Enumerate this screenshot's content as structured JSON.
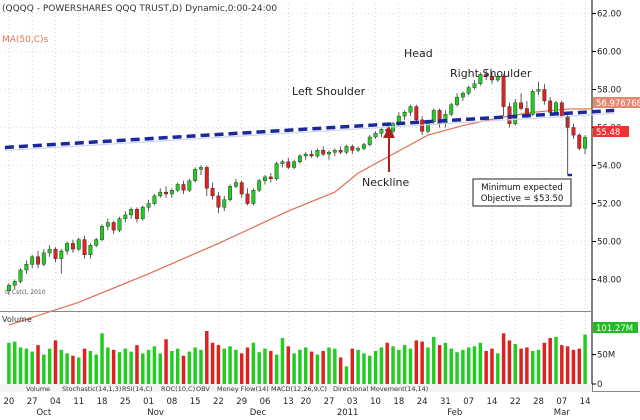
{
  "chart_title": "(QQQQ - POWERSHARES QQQ TRUST,D) Dynamic,0:00-24:00",
  "ma_label": "MA(50,C)s",
  "copyright": "© Cstcl, 2010",
  "annotations": {
    "head": "Head",
    "left_shoulder": "Left Shoulder",
    "right_shoulder": "Right Shoulder",
    "neckline": "Neckline",
    "objective_line1": "Minimum expected",
    "objective_line2": "Objective = $53.50"
  },
  "price_tags": {
    "ma_value": "56.976768",
    "last_price": "55.48"
  },
  "volume_panel": {
    "label": "Volume",
    "last_value_tag": "101.27M",
    "ticks": [
      "50M",
      "0"
    ]
  },
  "indicator_tabs": [
    "Volume",
    "Stochastic(14,1,3)",
    "RSI(14,C)",
    "ROC(10,C)",
    "OBV",
    "Money Flow(14)",
    "MACD(12,26,9,C)",
    "Directional Movement(14,14)"
  ],
  "colors": {
    "up": "#22cc22",
    "down": "#dd2222",
    "ma": "#e07050",
    "neckline": "#1a2a9a",
    "tag_ma": "#e08a70",
    "tag_price": "#ee3333",
    "tag_volume": "#22bb22"
  },
  "chart_data": {
    "type": "candlestick",
    "title": "(QQQQ - POWERSHARES QQQ TRUST,D) Dynamic,0:00-24:00",
    "y_ticks": [
      "62.00",
      "60.00",
      "58.00",
      "56.00",
      "54.00",
      "52.00",
      "50.00",
      "48.00"
    ],
    "ylim": [
      46.5,
      62.5
    ],
    "x_ticks": [
      "20",
      "27",
      "04",
      "11",
      "18",
      "25",
      "01",
      "08",
      "15",
      "22",
      "29",
      "06",
      "13",
      "20",
      "27",
      "03",
      "10",
      "18",
      "24",
      "31",
      "07",
      "14",
      "22",
      "28",
      "07",
      "14"
    ],
    "month_labels": [
      "Oct",
      "Nov",
      "Dec",
      "2011",
      "Feb",
      "Mar"
    ],
    "candles": [
      {
        "o": 47.4,
        "h": 47.8,
        "l": 47.2,
        "c": 47.7
      },
      {
        "o": 47.7,
        "h": 48.0,
        "l": 47.5,
        "c": 47.9
      },
      {
        "o": 47.9,
        "h": 48.6,
        "l": 47.8,
        "c": 48.5
      },
      {
        "o": 48.5,
        "h": 49.0,
        "l": 48.3,
        "c": 48.8
      },
      {
        "o": 48.8,
        "h": 49.3,
        "l": 48.6,
        "c": 49.2
      },
      {
        "o": 49.2,
        "h": 49.5,
        "l": 48.6,
        "c": 48.8
      },
      {
        "o": 48.8,
        "h": 49.6,
        "l": 48.7,
        "c": 49.4
      },
      {
        "o": 49.4,
        "h": 49.8,
        "l": 49.2,
        "c": 49.6
      },
      {
        "o": 49.6,
        "h": 49.7,
        "l": 48.9,
        "c": 49.1
      },
      {
        "o": 49.1,
        "h": 49.6,
        "l": 48.3,
        "c": 49.5
      },
      {
        "o": 49.5,
        "h": 50.0,
        "l": 49.3,
        "c": 49.9
      },
      {
        "o": 49.9,
        "h": 50.1,
        "l": 49.4,
        "c": 49.6
      },
      {
        "o": 49.6,
        "h": 50.2,
        "l": 49.5,
        "c": 50.1
      },
      {
        "o": 50.1,
        "h": 50.3,
        "l": 49.1,
        "c": 49.3
      },
      {
        "o": 49.3,
        "h": 49.9,
        "l": 49.1,
        "c": 49.8
      },
      {
        "o": 49.8,
        "h": 50.2,
        "l": 49.7,
        "c": 50.1
      },
      {
        "o": 50.1,
        "h": 50.9,
        "l": 50.0,
        "c": 50.8
      },
      {
        "o": 50.8,
        "h": 51.2,
        "l": 50.6,
        "c": 51.0
      },
      {
        "o": 51.0,
        "h": 51.1,
        "l": 50.4,
        "c": 50.6
      },
      {
        "o": 50.6,
        "h": 51.3,
        "l": 50.5,
        "c": 51.2
      },
      {
        "o": 51.2,
        "h": 51.6,
        "l": 51.0,
        "c": 51.4
      },
      {
        "o": 51.4,
        "h": 51.8,
        "l": 51.2,
        "c": 51.7
      },
      {
        "o": 51.7,
        "h": 51.8,
        "l": 51.0,
        "c": 51.2
      },
      {
        "o": 51.2,
        "h": 51.9,
        "l": 51.1,
        "c": 51.8
      },
      {
        "o": 51.8,
        "h": 52.2,
        "l": 51.6,
        "c": 52.0
      },
      {
        "o": 52.0,
        "h": 52.5,
        "l": 51.9,
        "c": 52.4
      },
      {
        "o": 52.4,
        "h": 52.8,
        "l": 52.3,
        "c": 52.6
      },
      {
        "o": 52.6,
        "h": 52.9,
        "l": 52.3,
        "c": 52.5
      },
      {
        "o": 52.5,
        "h": 52.8,
        "l": 52.3,
        "c": 52.7
      },
      {
        "o": 52.7,
        "h": 53.1,
        "l": 52.6,
        "c": 53.0
      },
      {
        "o": 53.0,
        "h": 53.2,
        "l": 52.5,
        "c": 52.7
      },
      {
        "o": 52.7,
        "h": 53.3,
        "l": 52.6,
        "c": 53.2
      },
      {
        "o": 53.2,
        "h": 53.9,
        "l": 53.1,
        "c": 53.8
      },
      {
        "o": 53.8,
        "h": 54.0,
        "l": 53.5,
        "c": 53.9
      },
      {
        "o": 53.9,
        "h": 54.0,
        "l": 52.4,
        "c": 52.8
      },
      {
        "o": 52.8,
        "h": 53.1,
        "l": 52.2,
        "c": 52.4
      },
      {
        "o": 52.4,
        "h": 52.6,
        "l": 51.5,
        "c": 51.8
      },
      {
        "o": 51.8,
        "h": 52.4,
        "l": 51.6,
        "c": 52.2
      },
      {
        "o": 52.2,
        "h": 53.0,
        "l": 52.1,
        "c": 52.9
      },
      {
        "o": 52.9,
        "h": 53.3,
        "l": 52.8,
        "c": 53.1
      },
      {
        "o": 53.1,
        "h": 53.2,
        "l": 52.3,
        "c": 52.5
      },
      {
        "o": 52.5,
        "h": 52.8,
        "l": 51.9,
        "c": 52.0
      },
      {
        "o": 52.0,
        "h": 52.8,
        "l": 51.9,
        "c": 52.7
      },
      {
        "o": 52.7,
        "h": 53.3,
        "l": 52.6,
        "c": 53.2
      },
      {
        "o": 53.2,
        "h": 53.5,
        "l": 53.0,
        "c": 53.4
      },
      {
        "o": 53.4,
        "h": 53.6,
        "l": 53.1,
        "c": 53.3
      },
      {
        "o": 53.3,
        "h": 54.2,
        "l": 53.2,
        "c": 54.1
      },
      {
        "o": 54.1,
        "h": 54.3,
        "l": 53.9,
        "c": 54.2
      },
      {
        "o": 54.2,
        "h": 54.4,
        "l": 53.8,
        "c": 53.9
      },
      {
        "o": 53.9,
        "h": 54.3,
        "l": 53.8,
        "c": 54.2
      },
      {
        "o": 54.2,
        "h": 54.6,
        "l": 54.1,
        "c": 54.5
      },
      {
        "o": 54.5,
        "h": 54.7,
        "l": 54.3,
        "c": 54.6
      },
      {
        "o": 54.6,
        "h": 54.8,
        "l": 54.4,
        "c": 54.5
      },
      {
        "o": 54.5,
        "h": 54.9,
        "l": 54.4,
        "c": 54.8
      },
      {
        "o": 54.8,
        "h": 55.0,
        "l": 54.5,
        "c": 54.6
      },
      {
        "o": 54.6,
        "h": 54.8,
        "l": 54.3,
        "c": 54.7
      },
      {
        "o": 54.7,
        "h": 54.9,
        "l": 54.5,
        "c": 54.8
      },
      {
        "o": 54.8,
        "h": 55.0,
        "l": 54.6,
        "c": 54.7
      },
      {
        "o": 54.7,
        "h": 55.1,
        "l": 54.6,
        "c": 55.0
      },
      {
        "o": 55.0,
        "h": 55.1,
        "l": 54.6,
        "c": 54.8
      },
      {
        "o": 54.8,
        "h": 55.0,
        "l": 54.7,
        "c": 54.9
      },
      {
        "o": 54.9,
        "h": 55.2,
        "l": 54.8,
        "c": 55.1
      },
      {
        "o": 55.1,
        "h": 55.6,
        "l": 55.0,
        "c": 55.5
      },
      {
        "o": 55.5,
        "h": 55.8,
        "l": 55.4,
        "c": 55.7
      },
      {
        "o": 55.7,
        "h": 56.0,
        "l": 55.5,
        "c": 55.9
      },
      {
        "o": 55.9,
        "h": 56.1,
        "l": 55.6,
        "c": 55.8
      },
      {
        "o": 55.8,
        "h": 56.3,
        "l": 55.7,
        "c": 56.2
      },
      {
        "o": 56.2,
        "h": 56.8,
        "l": 56.1,
        "c": 56.6
      },
      {
        "o": 56.6,
        "h": 56.9,
        "l": 56.4,
        "c": 56.8
      },
      {
        "o": 56.8,
        "h": 57.2,
        "l": 56.6,
        "c": 57.1
      },
      {
        "o": 57.1,
        "h": 57.2,
        "l": 56.2,
        "c": 56.4
      },
      {
        "o": 56.4,
        "h": 56.6,
        "l": 55.6,
        "c": 55.8
      },
      {
        "o": 55.8,
        "h": 56.4,
        "l": 55.7,
        "c": 56.3
      },
      {
        "o": 56.3,
        "h": 57.0,
        "l": 56.2,
        "c": 56.9
      },
      {
        "o": 56.9,
        "h": 57.0,
        "l": 56.0,
        "c": 56.2
      },
      {
        "o": 56.2,
        "h": 56.9,
        "l": 56.0,
        "c": 56.7
      },
      {
        "o": 56.7,
        "h": 57.3,
        "l": 56.6,
        "c": 57.2
      },
      {
        "o": 57.2,
        "h": 57.8,
        "l": 57.1,
        "c": 57.6
      },
      {
        "o": 57.6,
        "h": 57.9,
        "l": 57.4,
        "c": 57.8
      },
      {
        "o": 57.8,
        "h": 58.2,
        "l": 57.7,
        "c": 58.1
      },
      {
        "o": 58.1,
        "h": 58.5,
        "l": 58.0,
        "c": 58.3
      },
      {
        "o": 58.3,
        "h": 58.9,
        "l": 58.2,
        "c": 58.8
      },
      {
        "o": 58.8,
        "h": 59.0,
        "l": 58.5,
        "c": 58.7
      },
      {
        "o": 58.7,
        "h": 58.9,
        "l": 58.3,
        "c": 58.5
      },
      {
        "o": 58.5,
        "h": 58.8,
        "l": 58.4,
        "c": 58.7
      },
      {
        "o": 58.7,
        "h": 58.8,
        "l": 56.6,
        "c": 57.1
      },
      {
        "o": 57.1,
        "h": 57.3,
        "l": 56.0,
        "c": 56.2
      },
      {
        "o": 56.2,
        "h": 57.5,
        "l": 56.1,
        "c": 57.3
      },
      {
        "o": 57.3,
        "h": 57.8,
        "l": 56.9,
        "c": 57.0
      },
      {
        "o": 57.0,
        "h": 57.4,
        "l": 56.5,
        "c": 56.7
      },
      {
        "o": 56.7,
        "h": 58.0,
        "l": 56.6,
        "c": 57.9
      },
      {
        "o": 57.9,
        "h": 58.4,
        "l": 57.7,
        "c": 58.0
      },
      {
        "o": 58.0,
        "h": 58.3,
        "l": 57.2,
        "c": 57.4
      },
      {
        "o": 57.4,
        "h": 57.6,
        "l": 56.6,
        "c": 56.8
      },
      {
        "o": 56.8,
        "h": 57.4,
        "l": 56.7,
        "c": 57.3
      },
      {
        "o": 57.3,
        "h": 57.4,
        "l": 56.5,
        "c": 56.6
      },
      {
        "o": 56.6,
        "h": 56.8,
        "l": 55.8,
        "c": 56.0
      },
      {
        "o": 56.0,
        "h": 56.2,
        "l": 55.4,
        "c": 55.6
      },
      {
        "o": 55.6,
        "h": 55.7,
        "l": 54.8,
        "c": 54.9
      },
      {
        "o": 54.9,
        "h": 55.6,
        "l": 54.6,
        "c": 55.48
      }
    ],
    "ma50": [
      [
        0,
        45.6
      ],
      [
        12,
        46.8
      ],
      [
        24,
        48.3
      ],
      [
        36,
        49.9
      ],
      [
        48,
        51.6
      ],
      [
        56,
        52.6
      ],
      [
        60,
        53.6
      ],
      [
        66,
        54.6
      ],
      [
        72,
        55.6
      ],
      [
        78,
        56.1
      ],
      [
        84,
        56.5
      ],
      [
        90,
        56.8
      ],
      [
        96,
        56.97
      ],
      [
        100,
        56.98
      ]
    ],
    "neckline": [
      [
        0,
        54.95
      ],
      [
        104,
        56.9
      ]
    ],
    "objective_level": 53.5,
    "volume": [
      70,
      72,
      62,
      60,
      55,
      66,
      50,
      60,
      74,
      58,
      52,
      48,
      45,
      60,
      56,
      50,
      86,
      62,
      58,
      54,
      60,
      55,
      66,
      52,
      58,
      64,
      52,
      76,
      56,
      60,
      48,
      55,
      62,
      58,
      90,
      70,
      66,
      60,
      64,
      58,
      52,
      62,
      70,
      54,
      60,
      56,
      50,
      78,
      64,
      52,
      58,
      62,
      55,
      50,
      56,
      62,
      60,
      45,
      30,
      60,
      58,
      52,
      48,
      56,
      62,
      70,
      64,
      58,
      66,
      60,
      74,
      72,
      62,
      80,
      66,
      70,
      60,
      54,
      58,
      62,
      64,
      70,
      56,
      60,
      52,
      86,
      74,
      68,
      60,
      62,
      56,
      58,
      70,
      78,
      80,
      66,
      64,
      58,
      60,
      84,
      101
    ],
    "volume_ylim": [
      0,
      112
    ]
  }
}
